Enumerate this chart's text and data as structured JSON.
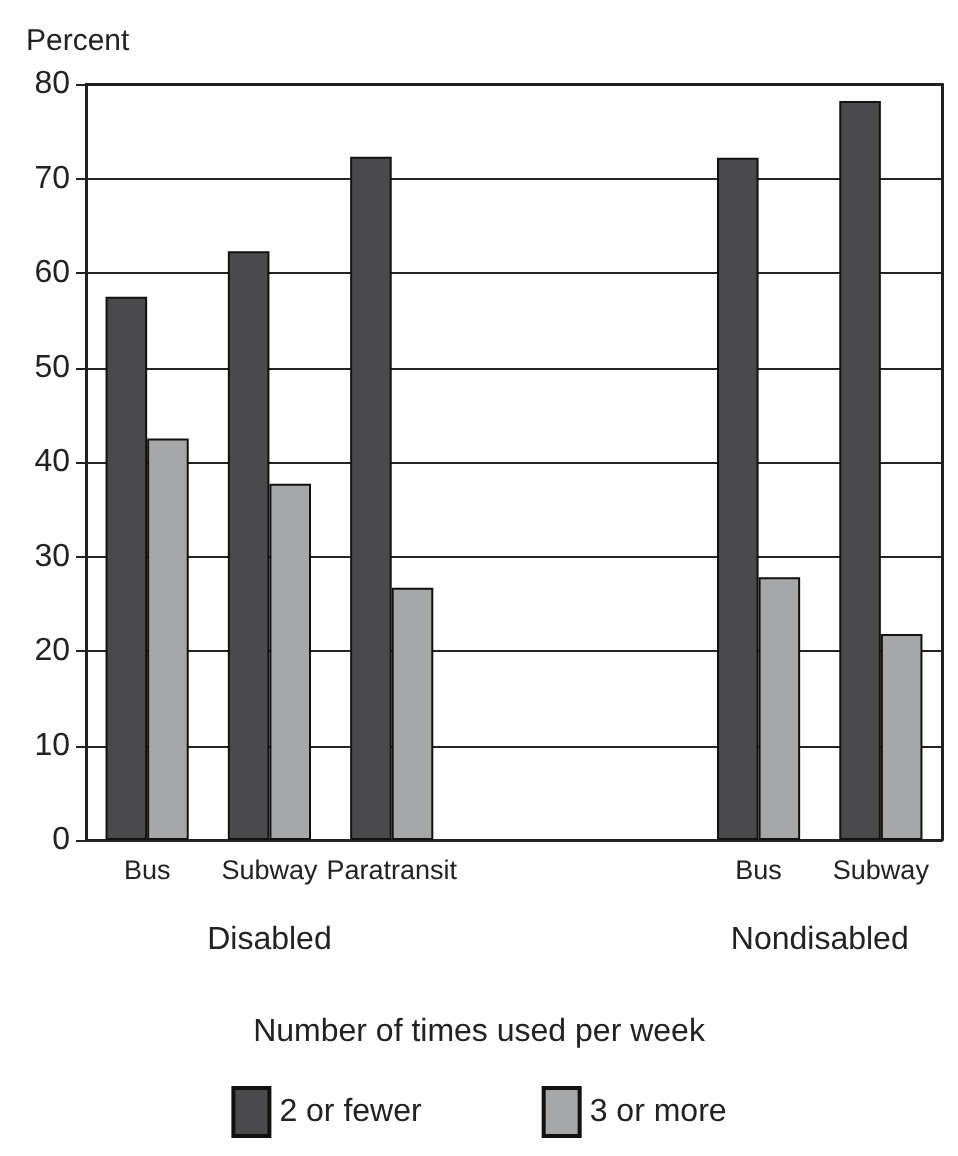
{
  "chart_data": {
    "type": "bar",
    "categories": [
      "Bus",
      "Subway",
      "Paratransit",
      null,
      null,
      "Bus",
      "Subway"
    ],
    "series": [
      {
        "name": "2 or fewer",
        "color": "#4a4a4c",
        "values": [
          57.5,
          62.3,
          72.3,
          null,
          null,
          72.2,
          78.2
        ]
      },
      {
        "name": "3 or more",
        "color": "#a6a7a9",
        "values": [
          42.5,
          37.7,
          26.7,
          null,
          null,
          27.8,
          21.8
        ]
      }
    ],
    "ylabel": "Percent",
    "xlabel": "Number of times used per week",
    "annotations": [
      "Disabled",
      "Nondisabled"
    ],
    "ylim": [
      0,
      80
    ],
    "yticks": [
      0,
      10,
      20,
      30,
      40,
      50,
      60,
      70,
      80
    ],
    "grid": "y",
    "legend": "bottom"
  }
}
